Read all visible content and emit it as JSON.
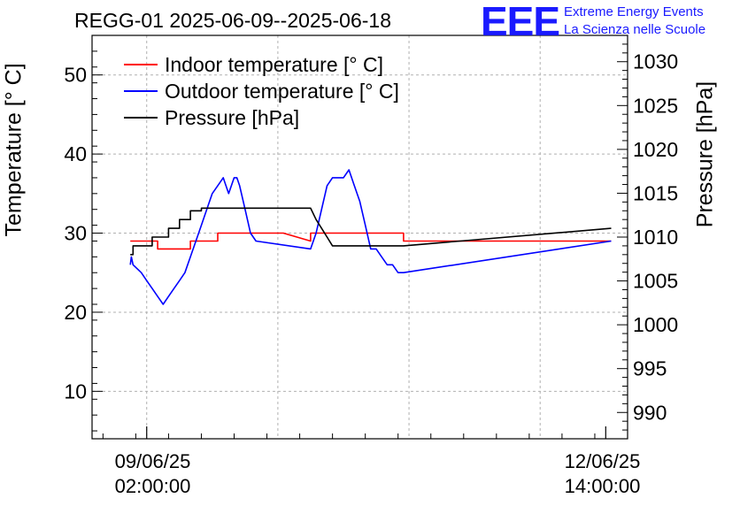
{
  "header": {
    "title": "REGG-01 2025-06-09--2025-06-18",
    "logo": "EEE",
    "org_line1": "Extreme Energy Events",
    "org_line2": "La Scienza nelle Scuole"
  },
  "chart_data": {
    "type": "line",
    "title": "REGG-01 2025-06-09--2025-06-18",
    "xlabel": "",
    "ylabel_left": "Temperature [° C]",
    "ylabel_right": "Pressure [hPa]",
    "grid": true,
    "legend_position": "top-left",
    "ylim_left": [
      4,
      55
    ],
    "ylim_right": [
      987,
      1033
    ],
    "left_ticks": [
      "10",
      "20",
      "30",
      "40",
      "50"
    ],
    "right_ticks": [
      "990",
      "995",
      "1000",
      "1005",
      "1010",
      "1015",
      "1020",
      "1025",
      "1030"
    ],
    "x_tick_labels": [
      {
        "date": "09/06/25",
        "time": "02:00:00"
      },
      {
        "date": "12/06/25",
        "time": "14:00:00"
      }
    ],
    "xlim_hours": [
      -10,
      88
    ],
    "series": [
      {
        "name": "Indoor temperature [° C]",
        "axis": "left",
        "color": "#ff0000",
        "x": [
          -3,
          2,
          2,
          8,
          8,
          13,
          13,
          25,
          30,
          30,
          40,
          40,
          47,
          47,
          85
        ],
        "y": [
          29,
          29,
          28,
          28,
          29,
          29,
          30,
          30,
          29,
          30,
          30,
          30,
          30,
          29,
          29
        ]
      },
      {
        "name": "Outdoor temperature [° C]",
        "axis": "left",
        "color": "#0000ff",
        "x": [
          -3,
          -2.8,
          -2.5,
          -1,
          0,
          1,
          2,
          3,
          4,
          5,
          6,
          7,
          8,
          9,
          10,
          11,
          12,
          13,
          14,
          15,
          15.5,
          16,
          16.5,
          17,
          18,
          19,
          20,
          30,
          31,
          32,
          33,
          34,
          35,
          36,
          37,
          38,
          39,
          40,
          41,
          42,
          43,
          44,
          45,
          46,
          47,
          85
        ],
        "y": [
          26,
          27,
          26,
          25,
          24,
          23,
          22,
          21,
          22,
          23,
          24,
          25,
          27,
          29,
          31,
          33,
          35,
          36,
          37,
          35,
          36,
          37,
          37,
          36,
          33,
          30,
          29,
          28,
          30,
          33,
          36,
          37,
          37,
          37,
          38,
          36,
          34,
          31,
          28,
          28,
          27,
          26,
          26,
          25,
          25,
          29
        ]
      },
      {
        "name": "Pressure [hPa]",
        "axis": "right",
        "color": "#000000",
        "x": [
          -3,
          -2.5,
          -2.5,
          1,
          1,
          4,
          4,
          6,
          6,
          8,
          8,
          10,
          10,
          30,
          31,
          32,
          33,
          34,
          35,
          47,
          85
        ],
        "y": [
          1008,
          1008,
          1009,
          1009,
          1010,
          1010,
          1011,
          1011,
          1012,
          1012,
          1013,
          1013,
          1013.3,
          1013.3,
          1012,
          1011,
          1010,
          1009,
          1009,
          1009,
          1011
        ]
      }
    ]
  }
}
